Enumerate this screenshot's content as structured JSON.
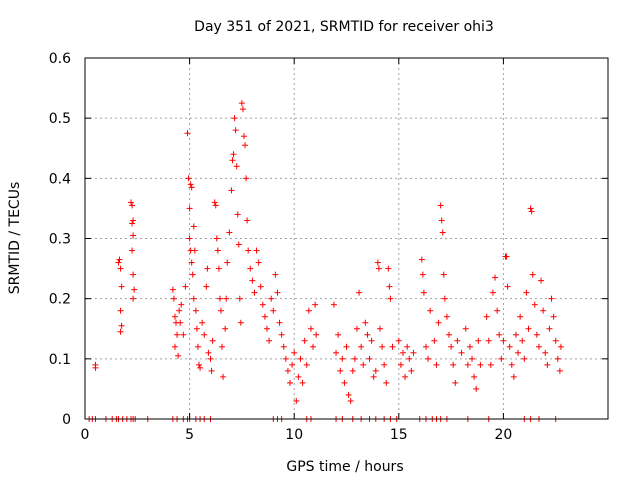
{
  "chart_data": {
    "type": "scatter",
    "title": "Day 351 of 2021, SRMTID for receiver ohi3",
    "xlabel": "GPS time / hours",
    "ylabel": "SRMTID / TECUs",
    "xlim": [
      0,
      25
    ],
    "ylim": [
      0,
      0.6
    ],
    "xticks": [
      0,
      5,
      10,
      15,
      20
    ],
    "yticks": [
      0,
      0.1,
      0.2,
      0.3,
      0.4,
      0.5,
      0.6
    ],
    "grid": true,
    "marker": "+",
    "color": "#ff0000",
    "series": [
      {
        "name": "SRMTID",
        "points": [
          [
            0.5,
            0.09
          ],
          [
            0.5,
            0.085
          ],
          [
            1.6,
            0.26
          ],
          [
            1.65,
            0.265
          ],
          [
            1.7,
            0.25
          ],
          [
            1.75,
            0.22
          ],
          [
            1.7,
            0.18
          ],
          [
            1.75,
            0.155
          ],
          [
            1.7,
            0.145
          ],
          [
            2.2,
            0.36
          ],
          [
            2.25,
            0.355
          ],
          [
            2.3,
            0.33
          ],
          [
            2.25,
            0.325
          ],
          [
            2.3,
            0.305
          ],
          [
            2.25,
            0.28
          ],
          [
            2.3,
            0.24
          ],
          [
            2.35,
            0.215
          ],
          [
            2.3,
            0.2
          ],
          [
            4.2,
            0.215
          ],
          [
            4.25,
            0.2
          ],
          [
            4.3,
            0.17
          ],
          [
            4.35,
            0.16
          ],
          [
            4.4,
            0.14
          ],
          [
            4.3,
            0.12
          ],
          [
            4.45,
            0.105
          ],
          [
            4.5,
            0.18
          ],
          [
            4.6,
            0.19
          ],
          [
            4.55,
            0.16
          ],
          [
            4.7,
            0.14
          ],
          [
            4.8,
            0.22
          ],
          [
            4.9,
            0.475
          ],
          [
            4.95,
            0.4
          ],
          [
            5.0,
            0.35
          ],
          [
            5.05,
            0.39
          ],
          [
            5.1,
            0.385
          ],
          [
            5.0,
            0.3
          ],
          [
            5.05,
            0.28
          ],
          [
            5.1,
            0.26
          ],
          [
            5.15,
            0.24
          ],
          [
            5.2,
            0.32
          ],
          [
            5.25,
            0.28
          ],
          [
            5.2,
            0.2
          ],
          [
            5.3,
            0.18
          ],
          [
            5.35,
            0.15
          ],
          [
            5.4,
            0.12
          ],
          [
            5.45,
            0.09
          ],
          [
            5.5,
            0.085
          ],
          [
            5.6,
            0.16
          ],
          [
            5.7,
            0.14
          ],
          [
            5.8,
            0.22
          ],
          [
            5.85,
            0.25
          ],
          [
            5.9,
            0.11
          ],
          [
            6.0,
            0.1
          ],
          [
            6.05,
            0.08
          ],
          [
            6.1,
            0.13
          ],
          [
            6.2,
            0.36
          ],
          [
            6.25,
            0.355
          ],
          [
            6.3,
            0.3
          ],
          [
            6.35,
            0.28
          ],
          [
            6.4,
            0.25
          ],
          [
            6.45,
            0.2
          ],
          [
            6.5,
            0.18
          ],
          [
            6.55,
            0.12
          ],
          [
            6.6,
            0.07
          ],
          [
            6.7,
            0.15
          ],
          [
            6.75,
            0.2
          ],
          [
            6.8,
            0.26
          ],
          [
            6.9,
            0.31
          ],
          [
            7.0,
            0.38
          ],
          [
            7.05,
            0.43
          ],
          [
            7.1,
            0.44
          ],
          [
            7.15,
            0.5
          ],
          [
            7.2,
            0.48
          ],
          [
            7.25,
            0.42
          ],
          [
            7.3,
            0.34
          ],
          [
            7.35,
            0.29
          ],
          [
            7.4,
            0.2
          ],
          [
            7.45,
            0.16
          ],
          [
            7.5,
            0.525
          ],
          [
            7.55,
            0.515
          ],
          [
            7.6,
            0.47
          ],
          [
            7.65,
            0.455
          ],
          [
            7.7,
            0.4
          ],
          [
            7.75,
            0.33
          ],
          [
            7.8,
            0.28
          ],
          [
            7.9,
            0.25
          ],
          [
            8.0,
            0.23
          ],
          [
            8.1,
            0.21
          ],
          [
            8.2,
            0.28
          ],
          [
            8.3,
            0.26
          ],
          [
            8.4,
            0.22
          ],
          [
            8.5,
            0.19
          ],
          [
            8.6,
            0.17
          ],
          [
            8.7,
            0.15
          ],
          [
            8.8,
            0.13
          ],
          [
            8.9,
            0.2
          ],
          [
            9.0,
            0.18
          ],
          [
            9.1,
            0.24
          ],
          [
            9.2,
            0.21
          ],
          [
            9.3,
            0.16
          ],
          [
            9.4,
            0.14
          ],
          [
            9.5,
            0.12
          ],
          [
            9.6,
            0.1
          ],
          [
            9.7,
            0.08
          ],
          [
            9.8,
            0.06
          ],
          [
            9.9,
            0.09
          ],
          [
            10.0,
            0.11
          ],
          [
            10.1,
            0.03
          ],
          [
            10.2,
            0.07
          ],
          [
            10.3,
            0.1
          ],
          [
            10.4,
            0.06
          ],
          [
            10.5,
            0.13
          ],
          [
            10.6,
            0.09
          ],
          [
            10.7,
            0.18
          ],
          [
            10.8,
            0.15
          ],
          [
            10.9,
            0.12
          ],
          [
            11.0,
            0.19
          ],
          [
            11.05,
            0.14
          ],
          [
            11.9,
            0.19
          ],
          [
            12.0,
            0.11
          ],
          [
            12.1,
            0.14
          ],
          [
            12.2,
            0.08
          ],
          [
            12.3,
            0.1
          ],
          [
            12.4,
            0.06
          ],
          [
            12.5,
            0.12
          ],
          [
            12.6,
            0.04
          ],
          [
            12.7,
            0.03
          ],
          [
            12.8,
            0.08
          ],
          [
            12.9,
            0.1
          ],
          [
            13.0,
            0.15
          ],
          [
            13.1,
            0.21
          ],
          [
            13.2,
            0.12
          ],
          [
            13.3,
            0.09
          ],
          [
            13.4,
            0.16
          ],
          [
            13.5,
            0.14
          ],
          [
            13.6,
            0.1
          ],
          [
            13.7,
            0.13
          ],
          [
            13.8,
            0.07
          ],
          [
            13.9,
            0.08
          ],
          [
            14.0,
            0.26
          ],
          [
            14.05,
            0.25
          ],
          [
            14.1,
            0.15
          ],
          [
            14.2,
            0.12
          ],
          [
            14.3,
            0.09
          ],
          [
            14.4,
            0.06
          ],
          [
            14.5,
            0.25
          ],
          [
            14.55,
            0.22
          ],
          [
            14.6,
            0.2
          ],
          [
            14.7,
            0.12
          ],
          [
            15.0,
            0.13
          ],
          [
            15.1,
            0.09
          ],
          [
            15.2,
            0.11
          ],
          [
            15.3,
            0.07
          ],
          [
            15.4,
            0.12
          ],
          [
            15.5,
            0.1
          ],
          [
            15.6,
            0.08
          ],
          [
            15.7,
            0.11
          ],
          [
            16.1,
            0.265
          ],
          [
            16.15,
            0.24
          ],
          [
            16.2,
            0.21
          ],
          [
            16.3,
            0.12
          ],
          [
            16.4,
            0.1
          ],
          [
            16.5,
            0.18
          ],
          [
            16.7,
            0.13
          ],
          [
            16.8,
            0.09
          ],
          [
            16.9,
            0.16
          ],
          [
            17.0,
            0.355
          ],
          [
            17.05,
            0.33
          ],
          [
            17.1,
            0.31
          ],
          [
            17.15,
            0.24
          ],
          [
            17.2,
            0.2
          ],
          [
            17.3,
            0.17
          ],
          [
            17.4,
            0.14
          ],
          [
            17.5,
            0.12
          ],
          [
            17.6,
            0.09
          ],
          [
            17.7,
            0.06
          ],
          [
            17.8,
            0.13
          ],
          [
            18.0,
            0.11
          ],
          [
            18.2,
            0.15
          ],
          [
            18.3,
            0.09
          ],
          [
            18.4,
            0.12
          ],
          [
            18.5,
            0.1
          ],
          [
            18.6,
            0.07
          ],
          [
            18.7,
            0.05
          ],
          [
            18.8,
            0.13
          ],
          [
            18.9,
            0.09
          ],
          [
            19.2,
            0.17
          ],
          [
            19.3,
            0.13
          ],
          [
            19.4,
            0.09
          ],
          [
            19.5,
            0.21
          ],
          [
            19.6,
            0.235
          ],
          [
            19.7,
            0.18
          ],
          [
            19.8,
            0.14
          ],
          [
            19.9,
            0.1
          ],
          [
            20.0,
            0.13
          ],
          [
            20.1,
            0.27
          ],
          [
            20.15,
            0.27
          ],
          [
            20.2,
            0.22
          ],
          [
            20.3,
            0.12
          ],
          [
            20.4,
            0.09
          ],
          [
            20.5,
            0.07
          ],
          [
            20.6,
            0.14
          ],
          [
            20.7,
            0.11
          ],
          [
            20.8,
            0.17
          ],
          [
            20.9,
            0.13
          ],
          [
            21.0,
            0.1
          ],
          [
            21.1,
            0.21
          ],
          [
            21.2,
            0.15
          ],
          [
            21.3,
            0.35
          ],
          [
            21.35,
            0.345
          ],
          [
            21.4,
            0.24
          ],
          [
            21.5,
            0.19
          ],
          [
            21.6,
            0.14
          ],
          [
            21.7,
            0.12
          ],
          [
            21.8,
            0.23
          ],
          [
            21.9,
            0.18
          ],
          [
            22.0,
            0.11
          ],
          [
            22.1,
            0.09
          ],
          [
            22.2,
            0.15
          ],
          [
            22.3,
            0.2
          ],
          [
            22.4,
            0.17
          ],
          [
            22.5,
            0.13
          ],
          [
            22.6,
            0.1
          ],
          [
            22.7,
            0.08
          ],
          [
            22.75,
            0.12
          ]
        ],
        "zero_points_x": [
          0.2,
          0.35,
          0.5,
          1.0,
          1.3,
          1.5,
          1.6,
          1.8,
          2.0,
          2.2,
          2.3,
          2.4,
          3.0,
          4.2,
          4.4,
          4.7,
          4.9,
          5.0,
          5.3,
          5.5,
          5.7,
          6.0,
          9.0,
          9.2,
          9.4,
          10.6,
          10.8,
          12.0,
          12.3,
          12.8,
          13.2,
          13.6,
          13.9,
          14.3,
          14.6,
          14.9,
          16.0,
          16.3,
          16.6,
          16.8,
          17.0,
          17.3,
          18.3,
          19.3,
          21.0,
          21.3,
          21.7,
          22.5
        ]
      }
    ]
  }
}
